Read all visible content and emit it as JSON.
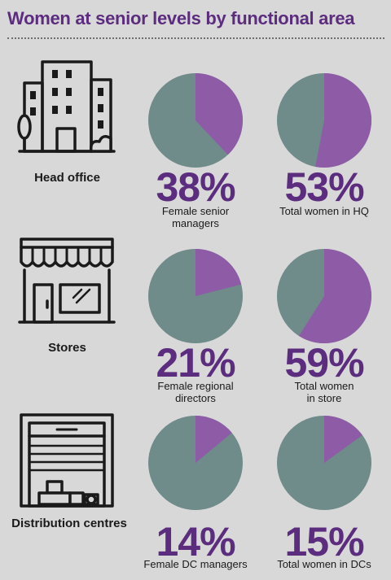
{
  "title": "Women at senior levels by functional area",
  "colors": {
    "purple": "#8e5ba7",
    "grey": "#6f8b8a",
    "accent": "#5c2d7e",
    "background": "#d9d8d9"
  },
  "chart_data": {
    "type": "pie",
    "rows": [
      {
        "label": "Head office",
        "icon": "office-building-icon",
        "charts": [
          {
            "value": 38,
            "display": "38%",
            "caption": "Female senior managers"
          },
          {
            "value": 53,
            "display": "53%",
            "caption": "Total women in HQ"
          }
        ]
      },
      {
        "label": "Stores",
        "icon": "storefront-icon",
        "charts": [
          {
            "value": 21,
            "display": "21%",
            "caption": "Female regional directors"
          },
          {
            "value": 59,
            "display": "59%",
            "caption": "Total women in store"
          }
        ]
      },
      {
        "label": "Distribution centres",
        "icon": "warehouse-icon",
        "charts": [
          {
            "value": 14,
            "display": "14%",
            "caption": "Female DC managers"
          },
          {
            "value": 15,
            "display": "15%",
            "caption": "Total women in DCs"
          }
        ]
      }
    ]
  }
}
